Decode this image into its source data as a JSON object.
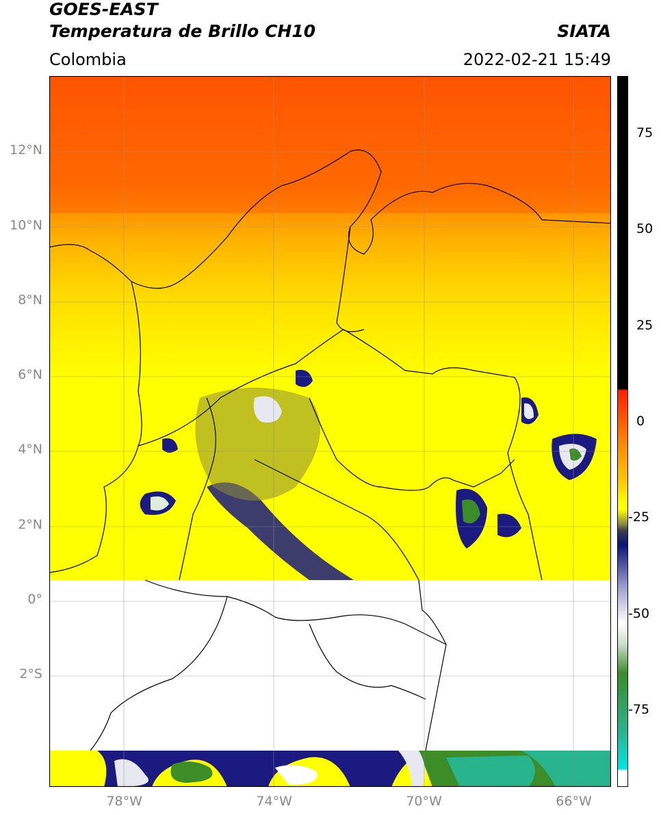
{
  "header": {
    "line1": "GOES-EAST",
    "line2": "Temperatura de Brillo CH10",
    "brand": "SIATA",
    "region": "Colombia",
    "datetime": "2022-02-21 15:49"
  },
  "map": {
    "lon_range": [
      -80,
      -65
    ],
    "lat_range": [
      -5,
      14
    ],
    "lat_ticks": [
      {
        "value": 12,
        "label": "12°N"
      },
      {
        "value": 10,
        "label": "10°N"
      },
      {
        "value": 8,
        "label": "8°N"
      },
      {
        "value": 6,
        "label": "6°N"
      },
      {
        "value": 4,
        "label": "4°N"
      },
      {
        "value": 2,
        "label": "2°N"
      },
      {
        "value": 0,
        "label": "0°"
      },
      {
        "value": -2,
        "label": "2°S"
      }
    ],
    "lon_ticks": [
      {
        "value": -78,
        "label": "78°W"
      },
      {
        "value": -74,
        "label": "74°W"
      },
      {
        "value": -70,
        "label": "70°W"
      },
      {
        "value": -66,
        "label": "66°W"
      }
    ],
    "data_gap_lat": [
      -4,
      0.6
    ],
    "gridlines": true
  },
  "colorbar": {
    "range": [
      -95,
      90
    ],
    "ticks": [
      {
        "value": 75,
        "label": "75"
      },
      {
        "value": 50,
        "label": "50"
      },
      {
        "value": 25,
        "label": "25"
      },
      {
        "value": 0,
        "label": "0"
      },
      {
        "value": -25,
        "label": "-25"
      },
      {
        "value": -50,
        "label": "-50"
      },
      {
        "value": -75,
        "label": "-75"
      }
    ],
    "colors": {
      "black": "#000000",
      "red": "#ff1e00",
      "orange": "#ff8c00",
      "yellow": "#ffff00",
      "olive": "#8c8c3c",
      "navy": "#0a1478",
      "white": "#ffffff",
      "green": "#3c8c28",
      "teal": "#28b48c",
      "cyan": "#00e6e6"
    }
  }
}
